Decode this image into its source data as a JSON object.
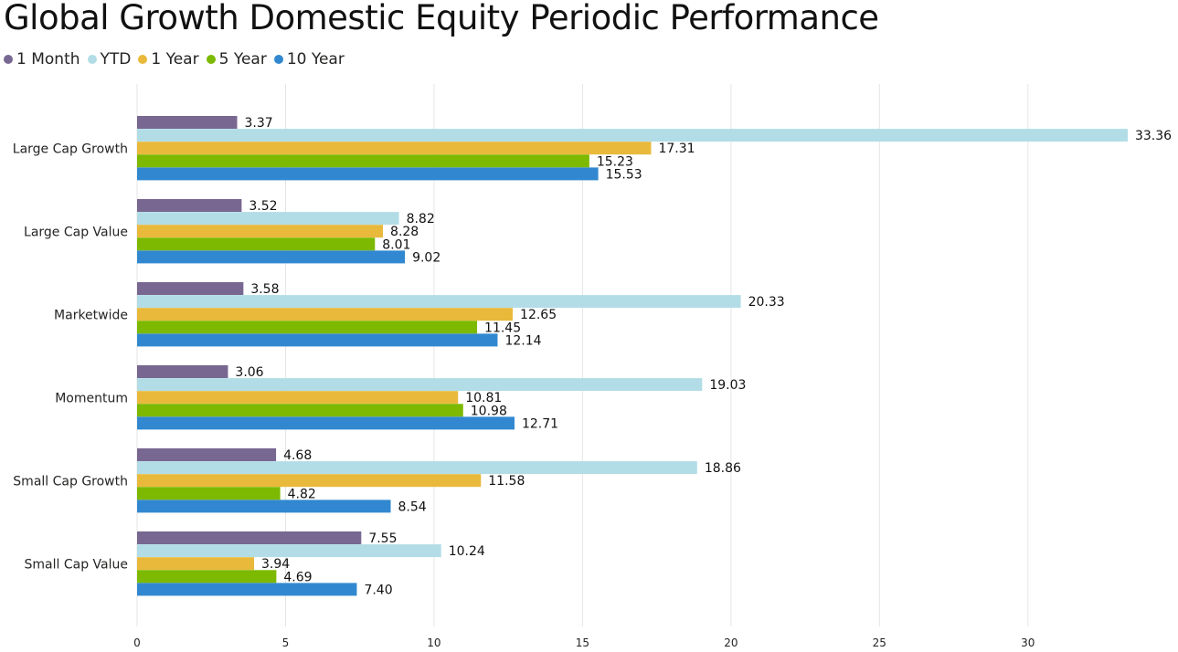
{
  "chart_data": {
    "type": "bar",
    "orientation": "horizontal",
    "title": "Global Growth Domestic Equity Periodic Performance",
    "categories": [
      "Large Cap Growth",
      "Large Cap Value",
      "Marketwide",
      "Momentum",
      "Small Cap Growth",
      "Small Cap Value"
    ],
    "series": [
      {
        "name": "1 Month",
        "color": "#776791",
        "values": [
          3.37,
          3.52,
          3.58,
          3.06,
          4.68,
          7.55
        ],
        "labels": [
          "3.37",
          "3.52",
          "3.58",
          "3.06",
          "4.68",
          "7.55"
        ]
      },
      {
        "name": "YTD",
        "color": "#b2dde6",
        "values": [
          33.36,
          8.82,
          20.33,
          19.03,
          18.86,
          10.24
        ],
        "labels": [
          "33.36",
          "8.82",
          "20.33",
          "19.03",
          "18.86",
          "10.24"
        ]
      },
      {
        "name": "1 Year",
        "color": "#e9b93c",
        "values": [
          17.31,
          8.28,
          12.65,
          10.81,
          11.58,
          3.94
        ],
        "labels": [
          "17.31",
          "8.28",
          "12.65",
          "10.81",
          "11.58",
          "3.94"
        ]
      },
      {
        "name": "5 Year",
        "color": "#7cb900",
        "values": [
          15.23,
          8.01,
          11.45,
          10.98,
          4.82,
          4.69
        ],
        "labels": [
          "15.23",
          "8.01",
          "11.45",
          "10.98",
          "4.82",
          "4.69"
        ]
      },
      {
        "name": "10 Year",
        "color": "#3188d0",
        "values": [
          15.53,
          9.02,
          12.14,
          12.71,
          8.54,
          7.4
        ],
        "labels": [
          "15.53",
          "9.02",
          "12.14",
          "12.71",
          "8.54",
          "7.40"
        ]
      }
    ],
    "x_ticks": [
      "0",
      "5",
      "10",
      "15",
      "20",
      "25",
      "30"
    ],
    "xlim": [
      0,
      34.5
    ],
    "grid": true,
    "legend_position": "top-left"
  }
}
